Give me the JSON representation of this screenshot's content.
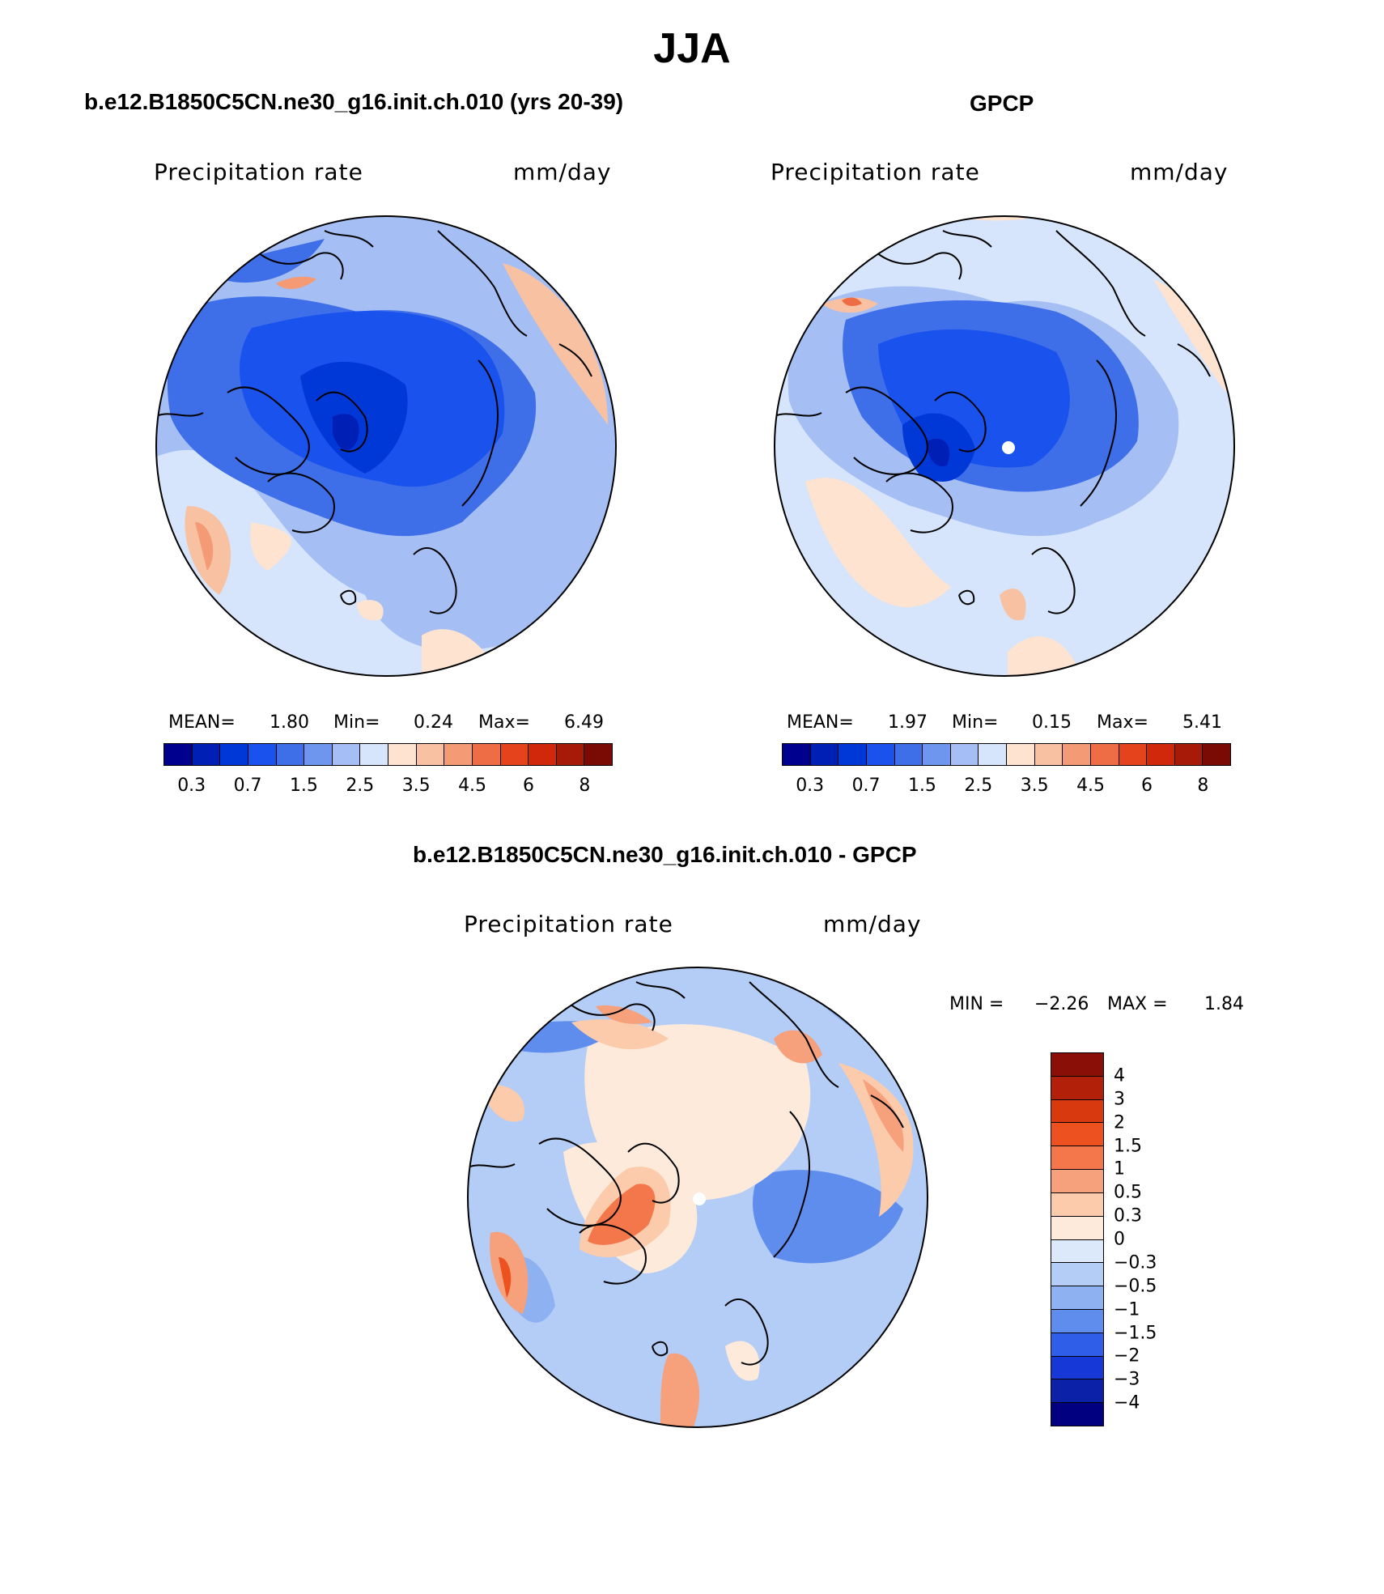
{
  "title": "JJA",
  "panels": {
    "model": {
      "title": "b.e12.B1850C5CN.ne30_g16.init.ch.010 (yrs 20-39)",
      "var_label": "Precipitation rate",
      "units": "mm/day",
      "stats": {
        "mean_label": "MEAN=",
        "mean": "1.80",
        "min_label": "Min=",
        "min": "0.24",
        "max_label": "Max=",
        "max": "6.49"
      }
    },
    "obs": {
      "title": "GPCP",
      "var_label": "Precipitation rate",
      "units": "mm/day",
      "stats": {
        "mean_label": "MEAN=",
        "mean": "1.97",
        "min_label": "Min=",
        "min": "0.15",
        "max_label": "Max=",
        "max": "5.41"
      }
    },
    "diff": {
      "title": "b.e12.B1850C5CN.ne30_g16.init.ch.010 - GPCP",
      "var_label": "Precipitation rate",
      "units": "mm/day",
      "stats": {
        "min_label": "MIN =",
        "min": "−2.26",
        "max_label": "MAX =",
        "max": "1.84"
      }
    }
  },
  "colorbar_abs": {
    "colors": [
      "#00008f",
      "#0020b5",
      "#0038d8",
      "#1a52ee",
      "#3f6fe8",
      "#6f96ee",
      "#a5bff5",
      "#d6e5fb",
      "#fde3d0",
      "#f8c2a2",
      "#f49a75",
      "#ee6d45",
      "#e5431c",
      "#d1280b",
      "#a81a08",
      "#7a0b04"
    ],
    "labels": [
      "0.3",
      "0.7",
      "1.5",
      "2.5",
      "3.5",
      "4.5",
      "6",
      "8"
    ]
  },
  "colorbar_diff": {
    "colors": [
      "#8a0f06",
      "#b3200a",
      "#d8390f",
      "#ed5120",
      "#f3774a",
      "#f6a07c",
      "#fbcbab",
      "#fdeadb",
      "#dbe9fb",
      "#b3cdf6",
      "#8eb1f1",
      "#5f8ded",
      "#2f5ee8",
      "#1538d6",
      "#0a21a8",
      "#000080"
    ],
    "labels": [
      "4",
      "3",
      "2",
      "1.5",
      "1",
      "0.5",
      "0.3",
      "0",
      "−0.3",
      "−0.5",
      "−1",
      "−1.5",
      "−2",
      "−3",
      "−4"
    ]
  }
}
